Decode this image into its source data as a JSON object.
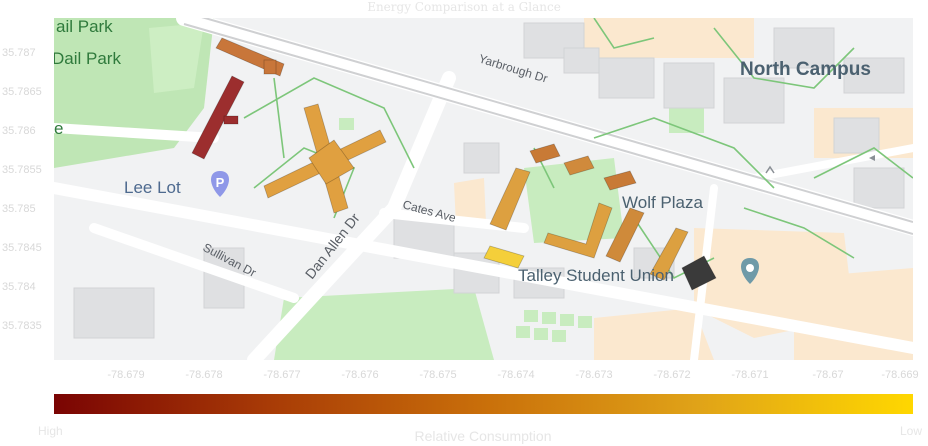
{
  "title": "Energy Comparison at a Glance",
  "axes": {
    "x_ticks": [
      "-78.679",
      "-78.678",
      "-78.677",
      "-78.676",
      "-78.675",
      "-78.674",
      "-78.673",
      "-78.672",
      "-78.671",
      "-78.67",
      "-78.669"
    ],
    "y_ticks": [
      "35.787",
      "35.7865",
      "35.786",
      "35.7855",
      "35.785",
      "35.7845",
      "35.784",
      "35.7835"
    ]
  },
  "map_labels": {
    "park_top": "ail Park",
    "park": "Dail Park",
    "lee_lot": "Lee Lot",
    "north_campus": "North Campus",
    "wolf_plaza": "Wolf Plaza",
    "talley": "Talley Student Union",
    "yarbrough": "Yarbrough Dr",
    "cates": "Cates Ave",
    "dan_allen": "Dan Allen Dr",
    "sullivan": "Sullivan Dr",
    "edge_e": "e",
    "parking_glyph": "P"
  },
  "colorbar": {
    "title": "Relative Consumption",
    "high_label": "High",
    "low_label": "Low",
    "colors": [
      "#7a0403",
      "#a83b06",
      "#c96f0a",
      "#e0a318",
      "#ffd700"
    ]
  },
  "buildings": [
    {
      "id": "b1",
      "level": 0.4,
      "color": "#c8763a"
    },
    {
      "id": "b2",
      "level": 0.05,
      "color": "#9c2e2e"
    },
    {
      "id": "b3",
      "level": 0.75,
      "color": "#e0a040"
    },
    {
      "id": "b4",
      "level": 0.55,
      "color": "#c87a36"
    },
    {
      "id": "b5",
      "level": 0.6,
      "color": "#d08a3c"
    },
    {
      "id": "b6",
      "level": 0.55,
      "color": "#c87a36"
    },
    {
      "id": "b7",
      "level": 0.7,
      "color": "#dda040"
    },
    {
      "id": "b8",
      "level": 0.7,
      "color": "#dda040"
    },
    {
      "id": "b9",
      "level": 0.6,
      "color": "#cf8a3a"
    },
    {
      "id": "b10",
      "level": 0.7,
      "color": "#dca040"
    },
    {
      "id": "b11",
      "level": 0.98,
      "color": "#f4cf3a"
    },
    {
      "id": "b12",
      "level": null,
      "color": "#3a3a3a"
    }
  ]
}
